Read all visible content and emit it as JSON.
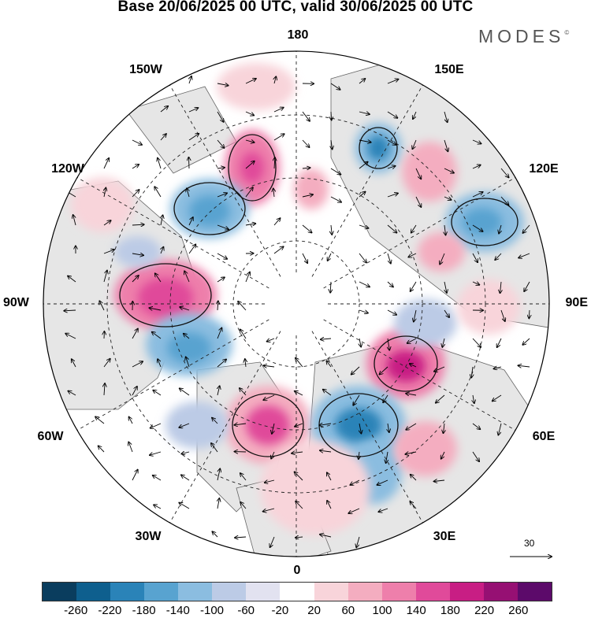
{
  "title": "Base 20/06/2025 00 UTC, valid 30/06/2025 00 UTC",
  "brand": {
    "text": "MODES",
    "mark": "©"
  },
  "longitude_labels": {
    "top": "180",
    "top_left": "150W",
    "top_right": "150E",
    "upper_left": "120W",
    "upper_right": "120E",
    "left": "90W",
    "right": "90E",
    "lower_left": "60W",
    "lower_right": "60E",
    "bottom_left": "30W",
    "bottom_right": "30E",
    "bottom": "0"
  },
  "vector_scale": {
    "value": "30",
    "icon": "arrow-right-icon"
  },
  "colorbar": {
    "ticks": [
      "-260",
      "-220",
      "-180",
      "-140",
      "-100",
      "-60",
      "-20",
      "20",
      "60",
      "100",
      "140",
      "180",
      "220",
      "260"
    ],
    "colors": [
      "#0a3d5e",
      "#0e5f8e",
      "#2a83b8",
      "#58a3d0",
      "#8bbde0",
      "#bccbe6",
      "#e2e2f0",
      "#ffffff",
      "#f8d4da",
      "#f4adc0",
      "#ee7fab",
      "#e04a9a",
      "#c81e84",
      "#961073",
      "#5c0a6a"
    ]
  },
  "map_colors": {
    "neutral_land": "#e6e6e6",
    "ocean_white": "#ffffff",
    "coast": "#555555",
    "grid": "#222222"
  }
}
